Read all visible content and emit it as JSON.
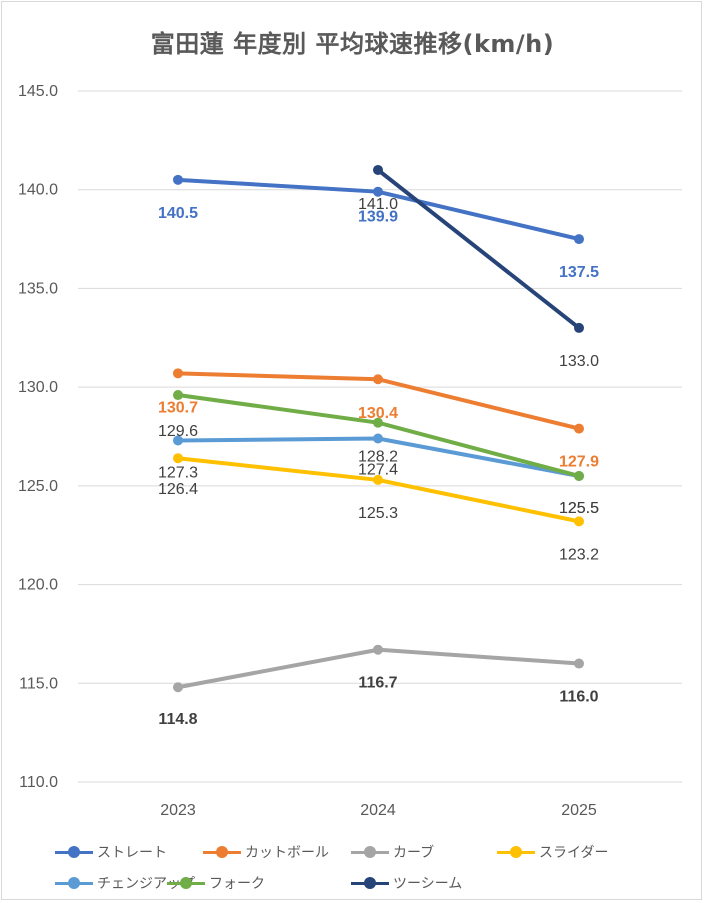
{
  "chart_data": {
    "type": "line",
    "title": "富田蓮 年度別 平均球速推移(km/h)",
    "categories": [
      "2023",
      "2024",
      "2025"
    ],
    "ylim": [
      110.0,
      145.0
    ],
    "y_ticks": [
      "145.0",
      "140.0",
      "135.0",
      "130.0",
      "125.0",
      "120.0",
      "115.0",
      "110.0"
    ],
    "grid": true,
    "legend_position": "bottom",
    "series": [
      {
        "name": "ストレート",
        "color": "#4472c4",
        "values": [
          140.5,
          139.9,
          137.5
        ],
        "labels": [
          "140.5",
          "139.9",
          "137.5"
        ]
      },
      {
        "name": "カットボール",
        "color": "#ed7d31",
        "values": [
          130.7,
          130.4,
          127.9
        ],
        "labels": [
          "130.7",
          "130.4",
          "127.9"
        ]
      },
      {
        "name": "カーブ",
        "color": "#a5a5a5",
        "values": [
          114.8,
          116.7,
          116.0
        ],
        "labels": [
          "114.8",
          "116.7",
          "116.0"
        ]
      },
      {
        "name": "スライダー",
        "color": "#ffc000",
        "values": [
          126.4,
          125.3,
          123.2
        ],
        "labels": [
          "126.4",
          "125.3",
          "123.2"
        ]
      },
      {
        "name": "チェンジアップ",
        "color": "#5b9bd5",
        "values": [
          127.3,
          127.4,
          125.5
        ],
        "labels": [
          "127.3",
          "127.4",
          "125.5"
        ]
      },
      {
        "name": "フォーク",
        "color": "#70ad47",
        "values": [
          129.6,
          128.2,
          125.5
        ],
        "labels": [
          "129.6",
          "128.2",
          "125.5"
        ]
      },
      {
        "name": "ツーシーム",
        "color": "#264478",
        "values": [
          null,
          141.0,
          133.0
        ],
        "labels": [
          null,
          "141.0",
          "133.0"
        ]
      }
    ]
  }
}
